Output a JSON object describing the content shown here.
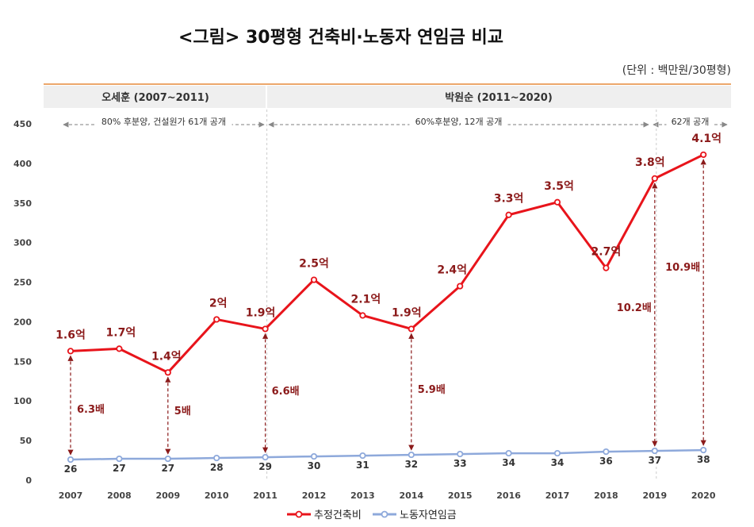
{
  "chart_data": {
    "type": "line",
    "title": "<그림> 30평형 건축비·노동자 연임금 비교",
    "unit_note": "(단위 : 백만원/30평형)",
    "categories": [
      "2007",
      "2008",
      "2009",
      "2010",
      "2011",
      "2012",
      "2013",
      "2014",
      "2015",
      "2016",
      "2017",
      "2018",
      "2019",
      "2020"
    ],
    "ylim": [
      0,
      450
    ],
    "yticks": [
      0,
      50,
      100,
      150,
      200,
      250,
      300,
      350,
      400,
      450
    ],
    "grid": false,
    "legend_position": "bottom",
    "series": [
      {
        "name": "추정건축비",
        "color": "#e8141b",
        "values": [
          163,
          166,
          136,
          203,
          191,
          253,
          208,
          191,
          245,
          335,
          351,
          268,
          381,
          411
        ],
        "labels": [
          "1.6억",
          "1.7억",
          "1.4억",
          "2억",
          "1.9억",
          "2.5억",
          "2.1억",
          "1.9억",
          "2.4억",
          "3.3억",
          "3.5억",
          "2.7억",
          "3.8억",
          "4.1억"
        ]
      },
      {
        "name": "노동자연임금",
        "color": "#8ea9db",
        "values": [
          26,
          27,
          27,
          28,
          29,
          30,
          31,
          32,
          33,
          34,
          34,
          36,
          37,
          38
        ],
        "labels": [
          "26",
          "27",
          "27",
          "28",
          "29",
          "30",
          "31",
          "32",
          "33",
          "34",
          "34",
          "36",
          "37",
          "38"
        ]
      }
    ],
    "ratios": [
      {
        "year": "2007",
        "label": "6.3배"
      },
      {
        "year": "2009",
        "label": "5배"
      },
      {
        "year": "2011",
        "label": "6.6배"
      },
      {
        "year": "2014",
        "label": "5.9배"
      },
      {
        "year": "2019",
        "label": "10.2배"
      },
      {
        "year": "2020",
        "label": "10.9배"
      }
    ],
    "periods": [
      {
        "label": "오세훈 (2007~2011)",
        "from": "2007",
        "to": "2011"
      },
      {
        "label": "박원순 (2011~2020)",
        "from": "2011",
        "to": "2020"
      }
    ],
    "policies": [
      {
        "label": "80% 후분양, 건설원가 61개 공개",
        "from": "2007",
        "to": "2011"
      },
      {
        "label": "60%후분양, 12개 공개",
        "from": "2011",
        "to": "2019"
      },
      {
        "label": "62개 공개",
        "from": "2019",
        "to": "2020"
      }
    ]
  }
}
